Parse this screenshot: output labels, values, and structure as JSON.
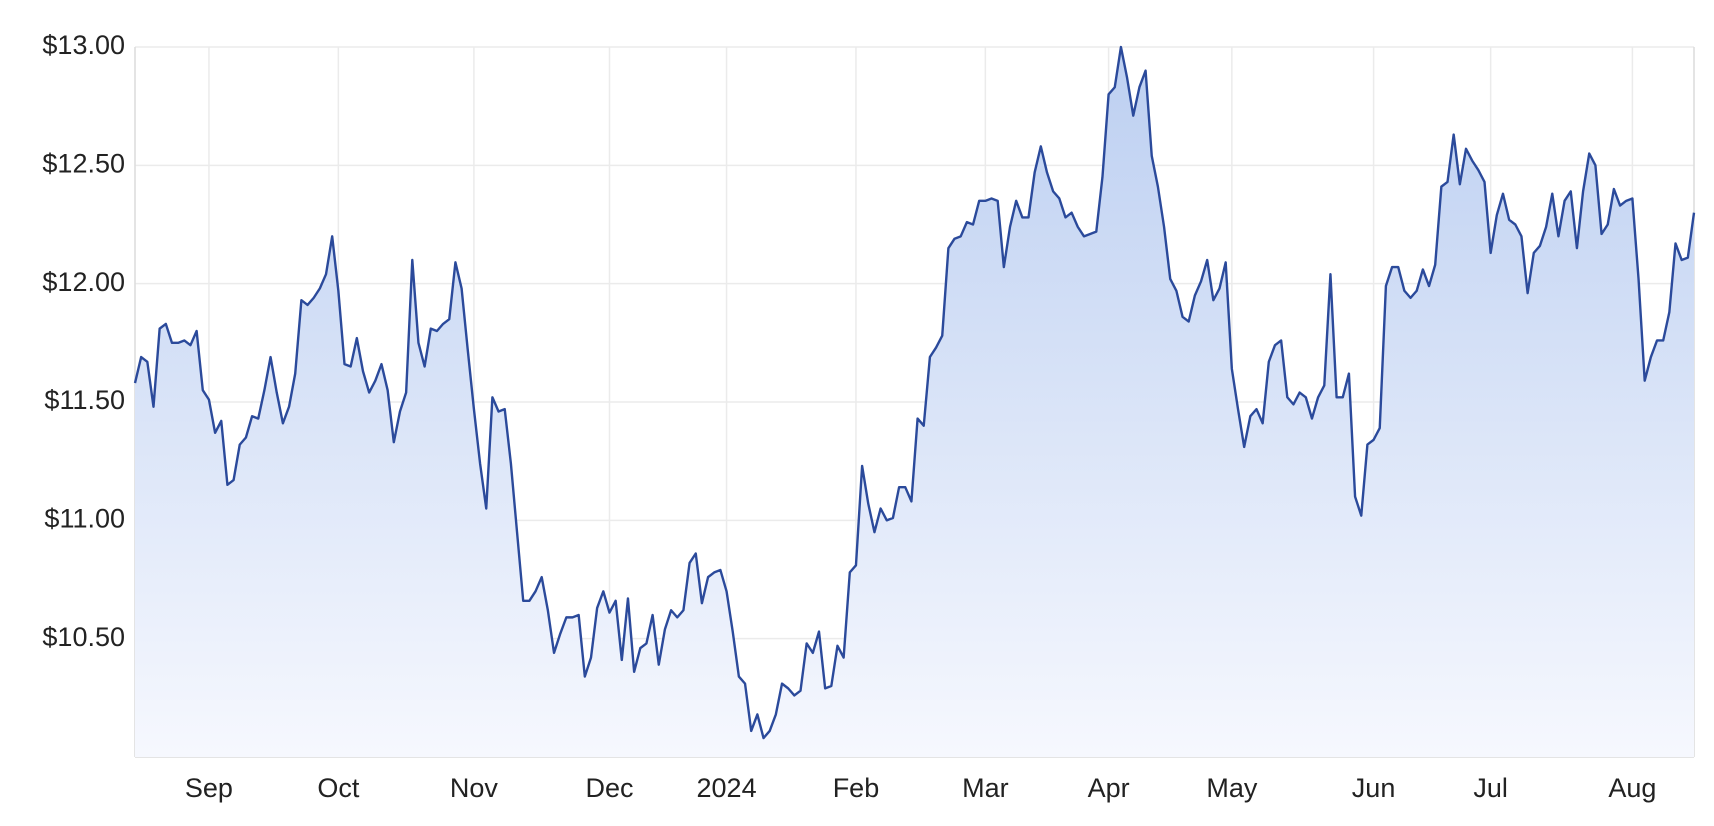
{
  "chart_data": {
    "type": "area",
    "ylim": [
      10,
      13
    ],
    "yticks": [
      {
        "value": 10.5,
        "label": "$10.50"
      },
      {
        "value": 11,
        "label": "$11.00"
      },
      {
        "value": 11.5,
        "label": "$11.50"
      },
      {
        "value": 12,
        "label": "$12.00"
      },
      {
        "value": 12.5,
        "label": "$12.50"
      },
      {
        "value": 13,
        "label": "$13.00"
      }
    ],
    "grid": true,
    "color": "#2b4a9b",
    "categories": [
      null,
      null,
      null,
      null,
      null,
      null,
      null,
      null,
      null,
      null,
      null,
      null,
      "Sep",
      null,
      null,
      null,
      null,
      null,
      null,
      null,
      null,
      null,
      null,
      null,
      null,
      null,
      null,
      null,
      null,
      null,
      null,
      null,
      null,
      "Oct",
      null,
      null,
      null,
      null,
      null,
      null,
      null,
      null,
      null,
      null,
      null,
      null,
      null,
      null,
      null,
      null,
      null,
      null,
      null,
      null,
      null,
      "Nov",
      null,
      null,
      null,
      null,
      null,
      null,
      null,
      null,
      null,
      null,
      null,
      null,
      null,
      null,
      null,
      null,
      null,
      null,
      null,
      null,
      null,
      "Dec",
      null,
      null,
      null,
      null,
      null,
      null,
      null,
      null,
      null,
      null,
      null,
      null,
      null,
      null,
      null,
      null,
      null,
      null,
      "2024",
      null,
      null,
      null,
      null,
      null,
      null,
      null,
      null,
      null,
      null,
      null,
      null,
      null,
      null,
      null,
      null,
      null,
      null,
      null,
      null,
      "Feb",
      null,
      null,
      null,
      null,
      null,
      null,
      null,
      null,
      null,
      null,
      null,
      null,
      null,
      null,
      null,
      null,
      null,
      null,
      null,
      null,
      "Mar",
      null,
      null,
      null,
      null,
      null,
      null,
      null,
      null,
      null,
      null,
      null,
      null,
      null,
      null,
      null,
      null,
      null,
      null,
      null,
      "Apr",
      null,
      null,
      null,
      null,
      null,
      null,
      null,
      null,
      null,
      null,
      null,
      null,
      null,
      null,
      null,
      null,
      null,
      null,
      null,
      "May",
      null,
      null,
      null,
      null,
      null,
      null,
      null,
      null,
      null,
      null,
      null,
      null,
      null,
      null,
      null,
      null,
      null,
      null,
      null,
      null,
      null,
      null,
      "Jun",
      null,
      null,
      null,
      null,
      null,
      null,
      null,
      null,
      null,
      null,
      null,
      null,
      null,
      null,
      null,
      null,
      null,
      null,
      "Jul",
      null,
      null,
      null,
      null,
      null,
      null,
      null,
      null,
      null,
      null,
      null,
      null,
      null,
      null,
      null,
      null,
      null,
      null,
      null,
      null,
      null,
      null,
      "Aug",
      null,
      null,
      null,
      null,
      null,
      null,
      null,
      null,
      null,
      null
    ],
    "values": [
      11.58,
      11.69,
      11.67,
      11.48,
      11.81,
      11.83,
      11.75,
      11.75,
      11.76,
      11.74,
      11.8,
      11.55,
      11.51,
      11.37,
      11.42,
      11.15,
      11.17,
      11.32,
      11.35,
      11.44,
      11.43,
      11.55,
      11.69,
      11.54,
      11.41,
      11.48,
      11.62,
      11.93,
      11.91,
      11.94,
      11.98,
      12.04,
      12.2,
      11.97,
      11.66,
      11.65,
      11.77,
      11.63,
      11.54,
      11.59,
      11.66,
      11.55,
      11.33,
      11.46,
      11.54,
      12.1,
      11.75,
      11.65,
      11.81,
      11.8,
      11.83,
      11.85,
      12.09,
      11.98,
      11.72,
      11.47,
      11.24,
      11.05,
      11.52,
      11.46,
      11.47,
      11.24,
      10.95,
      10.66,
      10.66,
      10.7,
      10.76,
      10.62,
      10.44,
      10.52,
      10.59,
      10.59,
      10.6,
      10.34,
      10.42,
      10.63,
      10.7,
      10.61,
      10.66,
      10.41,
      10.67,
      10.36,
      10.46,
      10.48,
      10.6,
      10.39,
      10.54,
      10.62,
      10.59,
      10.62,
      10.82,
      10.86,
      10.65,
      10.76,
      10.78,
      10.79,
      10.7,
      10.53,
      10.34,
      10.31,
      10.11,
      10.18,
      10.08,
      10.11,
      10.18,
      10.31,
      10.29,
      10.26,
      10.28,
      10.48,
      10.44,
      10.53,
      10.29,
      10.3,
      10.47,
      10.42,
      10.78,
      10.81,
      11.23,
      11.07,
      10.95,
      11.05,
      11.0,
      11.01,
      11.14,
      11.14,
      11.08,
      11.43,
      11.4,
      11.69,
      11.73,
      11.78,
      12.15,
      12.19,
      12.2,
      12.26,
      12.25,
      12.35,
      12.35,
      12.36,
      12.35,
      12.07,
      12.24,
      12.35,
      12.28,
      12.28,
      12.47,
      12.58,
      12.47,
      12.39,
      12.36,
      12.28,
      12.3,
      12.24,
      12.2,
      12.21,
      12.22,
      12.45,
      12.8,
      12.83,
      13.0,
      12.87,
      12.71,
      12.83,
      12.9,
      12.54,
      12.41,
      12.24,
      12.02,
      11.97,
      11.86,
      11.84,
      11.95,
      12.01,
      12.1,
      11.93,
      11.98,
      12.09,
      11.64,
      11.47,
      11.31,
      11.44,
      11.47,
      11.41,
      11.67,
      11.74,
      11.76,
      11.52,
      11.49,
      11.54,
      11.52,
      11.43,
      11.52,
      11.57,
      12.04,
      11.52,
      11.52,
      11.62,
      11.1,
      11.02,
      11.32,
      11.34,
      11.39,
      11.99,
      12.07,
      12.07,
      11.97,
      11.94,
      11.97,
      12.06,
      11.99,
      12.08,
      12.41,
      12.43,
      12.63,
      12.42,
      12.57,
      12.52,
      12.48,
      12.43,
      12.13,
      12.29,
      12.38,
      12.27,
      12.25,
      12.2,
      11.96,
      12.13,
      12.16,
      12.24,
      12.38,
      12.2,
      12.35,
      12.39,
      12.15,
      12.39,
      12.55,
      12.5,
      12.21,
      12.25,
      12.4,
      12.33,
      12.35,
      12.36,
      12.02,
      11.59,
      11.69,
      11.76,
      11.76,
      11.88,
      12.17,
      12.1,
      12.11,
      12.3
    ]
  }
}
